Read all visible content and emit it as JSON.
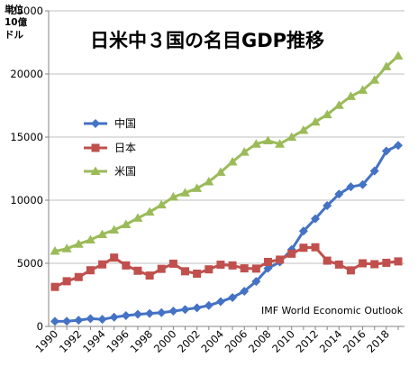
{
  "chart_data": {
    "type": "line",
    "title": "日米中３国の名目GDP推移",
    "unit_label": [
      "単位",
      "10億",
      "ドル"
    ],
    "source_note": "IMF World Economic Outlook",
    "x": [
      1990,
      1991,
      1992,
      1993,
      1994,
      1995,
      1996,
      1997,
      1998,
      1999,
      2000,
      2001,
      2002,
      2003,
      2004,
      2005,
      2006,
      2007,
      2008,
      2009,
      2010,
      2011,
      2012,
      2013,
      2014,
      2015,
      2016,
      2017,
      2018,
      2019
    ],
    "x_tick_labels": [
      "1990",
      "1992",
      "1994",
      "1996",
      "1998",
      "2000",
      "2002",
      "2004",
      "2006",
      "2008",
      "2010",
      "2012",
      "2014",
      "2016",
      "2018"
    ],
    "y_tick_labels": [
      "0",
      "5000",
      "10000",
      "15000",
      "20000",
      "25000"
    ],
    "ylim": [
      0,
      25000
    ],
    "grid": true,
    "legend_position": "left",
    "series": [
      {
        "name": "中国",
        "color": "#4472c4",
        "marker": "diamond",
        "values": [
          400,
          410,
          490,
          620,
          560,
          730,
          860,
          960,
          1030,
          1090,
          1210,
          1340,
          1470,
          1660,
          1960,
          2290,
          2790,
          3560,
          4600,
          5110,
          6090,
          7550,
          8530,
          9570,
          10480,
          11060,
          11230,
          12310,
          13890,
          14340
        ]
      },
      {
        "name": "日本",
        "color": "#c0504d",
        "marker": "square",
        "values": [
          3130,
          3580,
          3910,
          4450,
          4910,
          5450,
          4830,
          4410,
          4030,
          4560,
          4970,
          4370,
          4180,
          4520,
          4890,
          4830,
          4600,
          4580,
          5110,
          5290,
          5760,
          6230,
          6270,
          5210,
          4900,
          4440,
          5000,
          4930,
          5040,
          5150
        ]
      },
      {
        "name": "米国",
        "color": "#9bbb59",
        "marker": "triangle",
        "values": [
          5960,
          6160,
          6520,
          6860,
          7290,
          7640,
          8070,
          8580,
          9060,
          9630,
          10250,
          10580,
          10940,
          11460,
          12210,
          13040,
          13810,
          14450,
          14710,
          14450,
          14990,
          15540,
          16200,
          16780,
          17520,
          18220,
          18710,
          19520,
          20580,
          21430
        ]
      }
    ]
  }
}
